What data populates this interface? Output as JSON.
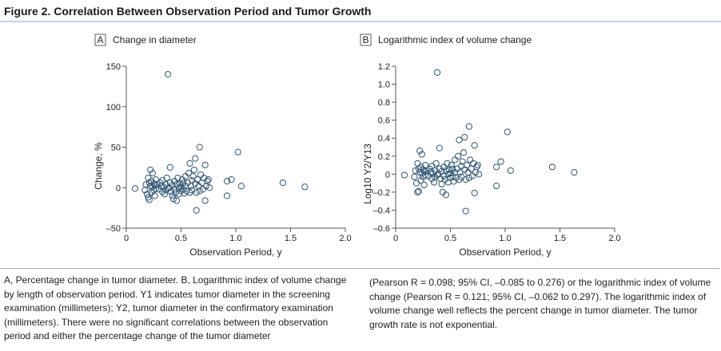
{
  "figure": {
    "title": "Figure 2. Correlation Between Observation Period and Tumor Growth"
  },
  "chart_data": [
    {
      "type": "scatter",
      "panel_letter": "A",
      "title": "Change in diameter",
      "xlabel": "Observation Period, y",
      "ylabel": "Change, %",
      "xlim": [
        0,
        2.0
      ],
      "ylim": [
        -50,
        150
      ],
      "xticks": [
        0,
        0.5,
        1.0,
        1.5,
        2.0
      ],
      "xtick_labels": [
        "0",
        "0.5",
        "1.0",
        "1.5",
        "2.0"
      ],
      "yticks": [
        -50,
        0,
        50,
        100,
        150
      ],
      "ytick_labels": [
        "–50",
        "0",
        "50",
        "100",
        "150"
      ],
      "grid": false,
      "marker": "open-circle",
      "points": [
        [
          0.08,
          -1
        ],
        [
          0.17,
          -3
        ],
        [
          0.18,
          4
        ],
        [
          0.19,
          -8
        ],
        [
          0.2,
          12
        ],
        [
          0.2,
          -12
        ],
        [
          0.21,
          6
        ],
        [
          0.21,
          -15
        ],
        [
          0.22,
          2
        ],
        [
          0.22,
          22
        ],
        [
          0.23,
          -6
        ],
        [
          0.23,
          8
        ],
        [
          0.24,
          18
        ],
        [
          0.24,
          1
        ],
        [
          0.25,
          -3
        ],
        [
          0.25,
          5
        ],
        [
          0.26,
          -10
        ],
        [
          0.26,
          3
        ],
        [
          0.27,
          -1
        ],
        [
          0.27,
          10
        ],
        [
          0.28,
          4
        ],
        [
          0.3,
          -2
        ],
        [
          0.31,
          6
        ],
        [
          0.32,
          2
        ],
        [
          0.33,
          -5
        ],
        [
          0.33,
          9
        ],
        [
          0.34,
          1
        ],
        [
          0.35,
          -8
        ],
        [
          0.36,
          4
        ],
        [
          0.36,
          -3
        ],
        [
          0.37,
          12
        ],
        [
          0.38,
          140
        ],
        [
          0.38,
          -1
        ],
        [
          0.39,
          0
        ],
        [
          0.4,
          6
        ],
        [
          0.4,
          25
        ],
        [
          0.41,
          -5
        ],
        [
          0.42,
          -10
        ],
        [
          0.42,
          3
        ],
        [
          0.43,
          -14
        ],
        [
          0.44,
          8
        ],
        [
          0.44,
          -2
        ],
        [
          0.45,
          -6
        ],
        [
          0.46,
          4
        ],
        [
          0.46,
          -16
        ],
        [
          0.47,
          12
        ],
        [
          0.48,
          0
        ],
        [
          0.48,
          -8
        ],
        [
          0.49,
          5
        ],
        [
          0.5,
          1
        ],
        [
          0.5,
          -4
        ],
        [
          0.51,
          10
        ],
        [
          0.52,
          -2
        ],
        [
          0.52,
          6
        ],
        [
          0.53,
          -7
        ],
        [
          0.54,
          2
        ],
        [
          0.54,
          14
        ],
        [
          0.55,
          -4
        ],
        [
          0.56,
          6
        ],
        [
          0.57,
          18
        ],
        [
          0.58,
          30
        ],
        [
          0.58,
          -6
        ],
        [
          0.59,
          2
        ],
        [
          0.6,
          9
        ],
        [
          0.6,
          -3
        ],
        [
          0.61,
          14
        ],
        [
          0.62,
          22
        ],
        [
          0.63,
          36
        ],
        [
          0.63,
          5
        ],
        [
          0.64,
          -28
        ],
        [
          0.64,
          -6
        ],
        [
          0.65,
          10
        ],
        [
          0.66,
          2
        ],
        [
          0.67,
          50
        ],
        [
          0.67,
          -4
        ],
        [
          0.68,
          16
        ],
        [
          0.69,
          6
        ],
        [
          0.7,
          -2
        ],
        [
          0.71,
          12
        ],
        [
          0.72,
          28
        ],
        [
          0.72,
          -16
        ],
        [
          0.73,
          2
        ],
        [
          0.74,
          8
        ],
        [
          0.75,
          10
        ],
        [
          0.76,
          0
        ],
        [
          0.92,
          8
        ],
        [
          0.92,
          -10
        ],
        [
          0.96,
          10
        ],
        [
          1.02,
          44
        ],
        [
          1.05,
          2
        ],
        [
          1.43,
          6
        ],
        [
          1.63,
          1
        ]
      ]
    },
    {
      "type": "scatter",
      "panel_letter": "B",
      "title": "Logarithmic index of volume change",
      "xlabel": "Observation Period, y",
      "ylabel": "Log10 Y2/Y13",
      "xlim": [
        0,
        2.0
      ],
      "ylim": [
        -0.6,
        1.2
      ],
      "xticks": [
        0,
        0.5,
        1.0,
        1.5,
        2.0
      ],
      "xtick_labels": [
        "0",
        "0.5",
        "1.0",
        "1.5",
        "2.0"
      ],
      "yticks": [
        -0.6,
        -0.4,
        -0.2,
        0,
        0.2,
        0.4,
        0.6,
        0.8,
        1.0,
        1.2
      ],
      "ytick_labels": [
        "–0.6",
        "–0.4",
        "–0.2",
        "0",
        "0.2",
        "0.4",
        "0.6",
        "0.8",
        "1.0",
        "1.2"
      ],
      "grid": false,
      "marker": "open-circle",
      "points": [
        [
          0.08,
          -0.01
        ],
        [
          0.17,
          -0.03
        ],
        [
          0.18,
          0.04
        ],
        [
          0.19,
          -0.1
        ],
        [
          0.2,
          0.12
        ],
        [
          0.2,
          -0.2
        ],
        [
          0.21,
          0.06
        ],
        [
          0.21,
          -0.19
        ],
        [
          0.22,
          0.02
        ],
        [
          0.22,
          0.26
        ],
        [
          0.23,
          -0.07
        ],
        [
          0.23,
          0.08
        ],
        [
          0.24,
          0.22
        ],
        [
          0.24,
          0.01
        ],
        [
          0.25,
          -0.03
        ],
        [
          0.25,
          0.05
        ],
        [
          0.26,
          -0.12
        ],
        [
          0.26,
          0.03
        ],
        [
          0.27,
          -0.01
        ],
        [
          0.27,
          0.1
        ],
        [
          0.28,
          0.04
        ],
        [
          0.3,
          -0.02
        ],
        [
          0.31,
          0.06
        ],
        [
          0.32,
          0.02
        ],
        [
          0.33,
          -0.05
        ],
        [
          0.33,
          0.09
        ],
        [
          0.34,
          0.01
        ],
        [
          0.35,
          -0.09
        ],
        [
          0.36,
          0.04
        ],
        [
          0.36,
          -0.03
        ],
        [
          0.37,
          0.12
        ],
        [
          0.38,
          1.13
        ],
        [
          0.38,
          -0.01
        ],
        [
          0.39,
          0
        ],
        [
          0.4,
          0.06
        ],
        [
          0.4,
          0.29
        ],
        [
          0.41,
          -0.05
        ],
        [
          0.42,
          -0.11
        ],
        [
          0.42,
          0.03
        ],
        [
          0.43,
          -0.2
        ],
        [
          0.44,
          0.08
        ],
        [
          0.44,
          -0.02
        ],
        [
          0.45,
          -0.06
        ],
        [
          0.46,
          0.04
        ],
        [
          0.46,
          -0.23
        ],
        [
          0.47,
          0.12
        ],
        [
          0.48,
          0
        ],
        [
          0.48,
          -0.09
        ],
        [
          0.49,
          0.05
        ],
        [
          0.5,
          0.01
        ],
        [
          0.5,
          -0.04
        ],
        [
          0.51,
          0.1
        ],
        [
          0.52,
          -0.02
        ],
        [
          0.52,
          0.06
        ],
        [
          0.53,
          -0.08
        ],
        [
          0.54,
          0.02
        ],
        [
          0.54,
          0.16
        ],
        [
          0.55,
          -0.04
        ],
        [
          0.56,
          0.06
        ],
        [
          0.57,
          0.2
        ],
        [
          0.58,
          0.38
        ],
        [
          0.58,
          -0.06
        ],
        [
          0.59,
          0.02
        ],
        [
          0.6,
          0.09
        ],
        [
          0.6,
          -0.03
        ],
        [
          0.61,
          0.14
        ],
        [
          0.62,
          0.24
        ],
        [
          0.63,
          0.41
        ],
        [
          0.63,
          0.05
        ],
        [
          0.64,
          -0.41
        ],
        [
          0.64,
          -0.06
        ],
        [
          0.65,
          0.1
        ],
        [
          0.66,
          0.02
        ],
        [
          0.67,
          0.53
        ],
        [
          0.67,
          -0.04
        ],
        [
          0.68,
          0.16
        ],
        [
          0.69,
          0.06
        ],
        [
          0.7,
          -0.02
        ],
        [
          0.71,
          0.12
        ],
        [
          0.72,
          0.32
        ],
        [
          0.72,
          -0.21
        ],
        [
          0.73,
          0.02
        ],
        [
          0.74,
          0.08
        ],
        [
          0.75,
          0.1
        ],
        [
          0.76,
          0
        ],
        [
          0.92,
          0.08
        ],
        [
          0.92,
          -0.13
        ],
        [
          0.96,
          0.14
        ],
        [
          1.02,
          0.47
        ],
        [
          1.05,
          0.04
        ],
        [
          1.43,
          0.08
        ],
        [
          1.63,
          0.02
        ]
      ]
    }
  ],
  "caption": {
    "left": "A, Percentage change in tumor diameter. B, Logarithmic index of volume change by length of observation period. Y1 indicates tumor diameter in the screening examination (millimeters); Y2, tumor diameter in the confirmatory examination (millimeters). There were no significant correlations between the observation period and either the percentage change of the tumor diameter",
    "right": "(Pearson R = 0.098; 95% CI, –0.085 to 0.276) or the logarithmic index of volume change (Pearson R = 0.121; 95% CI, –0.062 to 0.297). The logarithmic index of volume change well reflects the percent change in tumor diameter. The tumor growth rate is not exponential."
  }
}
